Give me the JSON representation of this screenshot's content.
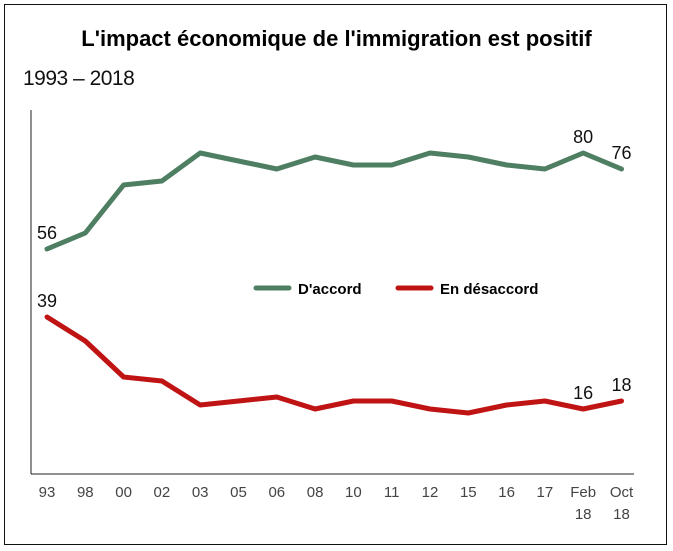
{
  "chart_data": {
    "type": "line",
    "title": "L'impact économique de l'immigration est positif",
    "subtitle": "1993 – 2018",
    "xlabel": "",
    "ylabel": "",
    "ylim": [
      0,
      100
    ],
    "grid": false,
    "legend_position": "center",
    "categories": [
      [
        "93"
      ],
      [
        "98"
      ],
      [
        "00"
      ],
      [
        "02"
      ],
      [
        "03"
      ],
      [
        "05"
      ],
      [
        "06"
      ],
      [
        "08"
      ],
      [
        "10"
      ],
      [
        "11"
      ],
      [
        "12"
      ],
      [
        "15"
      ],
      [
        "16"
      ],
      [
        "17"
      ],
      [
        "Feb",
        "18"
      ],
      [
        "Oct",
        "18"
      ]
    ],
    "series": [
      {
        "name": "D'accord",
        "color": "#4f7f63",
        "values": [
          56,
          60,
          72,
          73,
          80,
          78,
          76,
          79,
          77,
          77,
          80,
          79,
          77,
          76,
          80,
          76
        ],
        "labels": {
          "0": "56",
          "14": "80",
          "15": "76"
        }
      },
      {
        "name": "En désaccord",
        "color": "#c01414",
        "values": [
          39,
          33,
          24,
          23,
          17,
          18,
          19,
          16,
          18,
          18,
          16,
          15,
          17,
          18,
          16,
          18
        ],
        "labels": {
          "0": "39",
          "14": "16",
          "15": "18"
        }
      }
    ]
  }
}
